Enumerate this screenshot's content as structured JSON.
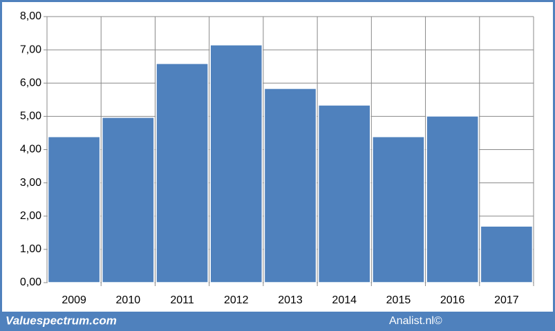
{
  "chart_data": {
    "type": "bar",
    "categories": [
      "2009",
      "2010",
      "2011",
      "2012",
      "2013",
      "2014",
      "2015",
      "2016",
      "2017"
    ],
    "values": [
      4.39,
      4.97,
      6.59,
      7.15,
      5.84,
      5.34,
      4.39,
      5.01,
      1.7
    ],
    "color": "#4f81bd",
    "ylim": [
      0,
      8
    ],
    "yticks": [
      {
        "value": 0,
        "label": "0,00"
      },
      {
        "value": 1,
        "label": "1,00"
      },
      {
        "value": 2,
        "label": "2,00"
      },
      {
        "value": 3,
        "label": "3,00"
      },
      {
        "value": 4,
        "label": "4,00"
      },
      {
        "value": 5,
        "label": "5,00"
      },
      {
        "value": 6,
        "label": "6,00"
      },
      {
        "value": 7,
        "label": "7,00"
      },
      {
        "value": 8,
        "label": "8,00"
      }
    ],
    "grid": true,
    "annotations": [
      "Valuespectrum.com",
      "Analist.nl©"
    ]
  }
}
